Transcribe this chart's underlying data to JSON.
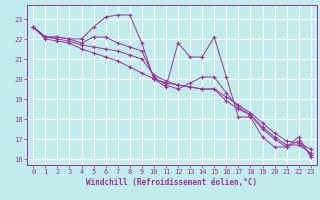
{
  "xlabel": "Windchill (Refroidissement éolien,°C)",
  "xlim": [
    -0.5,
    23.5
  ],
  "ylim": [
    15.7,
    23.7
  ],
  "yticks": [
    16,
    17,
    18,
    19,
    20,
    21,
    22,
    23
  ],
  "xticks": [
    0,
    1,
    2,
    3,
    4,
    5,
    6,
    7,
    8,
    9,
    10,
    11,
    12,
    13,
    14,
    15,
    16,
    17,
    18,
    19,
    20,
    21,
    22,
    23
  ],
  "bg_color": "#c0ecec",
  "grid_color": "#ffffff",
  "line_color": "#993399",
  "series": [
    [
      22.6,
      22.1,
      22.1,
      22.0,
      22.0,
      22.6,
      23.1,
      23.2,
      23.2,
      21.8,
      20.0,
      19.6,
      21.8,
      21.1,
      21.1,
      22.1,
      20.1,
      18.1,
      18.1,
      17.1,
      16.6,
      16.6,
      17.1,
      16.1
    ],
    [
      22.6,
      22.1,
      22.1,
      22.0,
      21.8,
      22.1,
      22.1,
      21.8,
      21.6,
      21.4,
      20.1,
      19.7,
      19.5,
      19.8,
      20.1,
      20.1,
      19.3,
      18.6,
      18.2,
      17.5,
      17.0,
      16.6,
      16.9,
      16.2
    ],
    [
      22.6,
      22.1,
      22.0,
      21.9,
      21.7,
      21.6,
      21.5,
      21.4,
      21.2,
      21.0,
      20.2,
      19.9,
      19.7,
      19.6,
      19.5,
      19.5,
      19.1,
      18.7,
      18.3,
      17.8,
      17.3,
      16.9,
      16.8,
      16.5
    ],
    [
      22.6,
      22.0,
      21.9,
      21.8,
      21.5,
      21.3,
      21.1,
      20.9,
      20.6,
      20.3,
      20.0,
      19.8,
      19.7,
      19.6,
      19.5,
      19.5,
      18.9,
      18.5,
      18.2,
      17.6,
      17.1,
      16.7,
      16.7,
      16.3
    ]
  ],
  "label_fontsize": 5.5,
  "tick_fontsize": 5.0,
  "xlabel_fontsize": 5.5
}
